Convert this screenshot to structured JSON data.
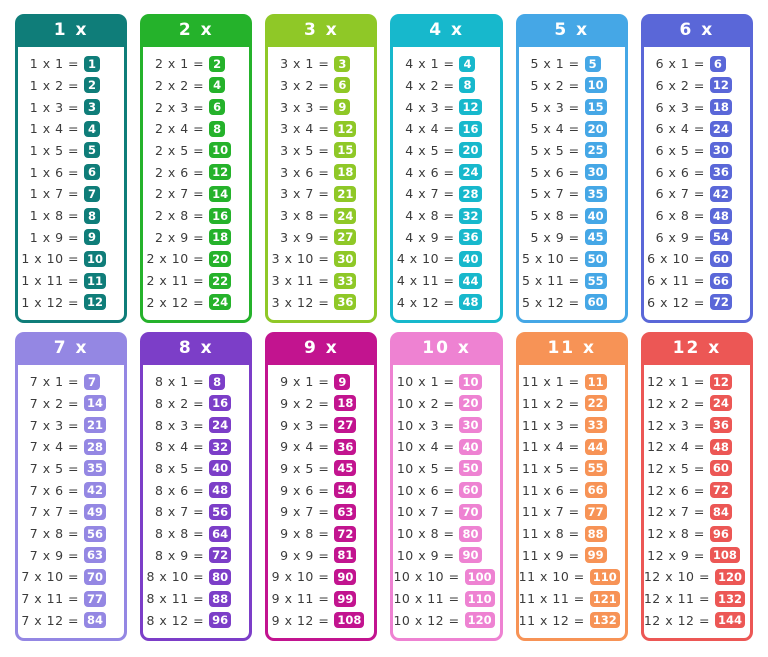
{
  "page": {
    "background": "#ffffff",
    "equation_text_color": "#3c3c3c",
    "chip_text_color": "#ffffff"
  },
  "tables": [
    {
      "title": "1 x",
      "color": "#0F7D79",
      "rows": [
        {
          "eq": "1 x 1 =",
          "val": "1"
        },
        {
          "eq": "1 x 2 =",
          "val": "2"
        },
        {
          "eq": "1 x 3 =",
          "val": "3"
        },
        {
          "eq": "1 x 4 =",
          "val": "4"
        },
        {
          "eq": "1 x 5 =",
          "val": "5"
        },
        {
          "eq": "1 x 6 =",
          "val": "6"
        },
        {
          "eq": "1 x 7 =",
          "val": "7"
        },
        {
          "eq": "1 x 8 =",
          "val": "8"
        },
        {
          "eq": "1 x 9 =",
          "val": "9"
        },
        {
          "eq": "1 x 10 =",
          "val": "10"
        },
        {
          "eq": "1 x 11 =",
          "val": "11"
        },
        {
          "eq": "1 x 12 =",
          "val": "12"
        }
      ]
    },
    {
      "title": "2 x",
      "color": "#25B22B",
      "rows": [
        {
          "eq": "2 x 1 =",
          "val": "2"
        },
        {
          "eq": "2 x 2 =",
          "val": "4"
        },
        {
          "eq": "2 x 3 =",
          "val": "6"
        },
        {
          "eq": "2 x 4 =",
          "val": "8"
        },
        {
          "eq": "2 x 5 =",
          "val": "10"
        },
        {
          "eq": "2 x 6 =",
          "val": "12"
        },
        {
          "eq": "2 x 7 =",
          "val": "14"
        },
        {
          "eq": "2 x 8 =",
          "val": "16"
        },
        {
          "eq": "2 x 9 =",
          "val": "18"
        },
        {
          "eq": "2 x 10 =",
          "val": "20"
        },
        {
          "eq": "2 x 11 =",
          "val": "22"
        },
        {
          "eq": "2 x 12 =",
          "val": "24"
        }
      ]
    },
    {
      "title": "3 x",
      "color": "#8FC827",
      "rows": [
        {
          "eq": "3 x 1 =",
          "val": "3"
        },
        {
          "eq": "3 x 2 =",
          "val": "6"
        },
        {
          "eq": "3 x 3 =",
          "val": "9"
        },
        {
          "eq": "3 x 4 =",
          "val": "12"
        },
        {
          "eq": "3 x 5 =",
          "val": "15"
        },
        {
          "eq": "3 x 6 =",
          "val": "18"
        },
        {
          "eq": "3 x 7 =",
          "val": "21"
        },
        {
          "eq": "3 x 8 =",
          "val": "24"
        },
        {
          "eq": "3 x 9 =",
          "val": "27"
        },
        {
          "eq": "3 x 10 =",
          "val": "30"
        },
        {
          "eq": "3 x 11 =",
          "val": "33"
        },
        {
          "eq": "3 x 12 =",
          "val": "36"
        }
      ]
    },
    {
      "title": "4 x",
      "color": "#17B8CC",
      "rows": [
        {
          "eq": "4 x 1 =",
          "val": "4"
        },
        {
          "eq": "4 x 2 =",
          "val": "8"
        },
        {
          "eq": "4 x 3 =",
          "val": "12"
        },
        {
          "eq": "4 x 4 =",
          "val": "16"
        },
        {
          "eq": "4 x 5 =",
          "val": "20"
        },
        {
          "eq": "4 x 6 =",
          "val": "24"
        },
        {
          "eq": "4 x 7 =",
          "val": "28"
        },
        {
          "eq": "4 x 8 =",
          "val": "32"
        },
        {
          "eq": "4 x 9 =",
          "val": "36"
        },
        {
          "eq": "4 x 10 =",
          "val": "40"
        },
        {
          "eq": "4 x 11 =",
          "val": "44"
        },
        {
          "eq": "4 x 12 =",
          "val": "48"
        }
      ]
    },
    {
      "title": "5 x",
      "color": "#45A7E6",
      "rows": [
        {
          "eq": "5 x 1 =",
          "val": "5"
        },
        {
          "eq": "5 x 2 =",
          "val": "10"
        },
        {
          "eq": "5 x 3 =",
          "val": "15"
        },
        {
          "eq": "5 x 4 =",
          "val": "20"
        },
        {
          "eq": "5 x 5 =",
          "val": "25"
        },
        {
          "eq": "5 x 6 =",
          "val": "30"
        },
        {
          "eq": "5 x 7 =",
          "val": "35"
        },
        {
          "eq": "5 x 8 =",
          "val": "40"
        },
        {
          "eq": "5 x 9 =",
          "val": "45"
        },
        {
          "eq": "5 x 10 =",
          "val": "50"
        },
        {
          "eq": "5 x 11 =",
          "val": "55"
        },
        {
          "eq": "5 x 12 =",
          "val": "60"
        }
      ]
    },
    {
      "title": "6 x",
      "color": "#5A67D8",
      "rows": [
        {
          "eq": "6 x 1 =",
          "val": "6"
        },
        {
          "eq": "6 x 2 =",
          "val": "12"
        },
        {
          "eq": "6 x 3 =",
          "val": "18"
        },
        {
          "eq": "6 x 4 =",
          "val": "24"
        },
        {
          "eq": "6 x 5 =",
          "val": "30"
        },
        {
          "eq": "6 x 6 =",
          "val": "36"
        },
        {
          "eq": "6 x 7 =",
          "val": "42"
        },
        {
          "eq": "6 x 8 =",
          "val": "48"
        },
        {
          "eq": "6 x 9 =",
          "val": "54"
        },
        {
          "eq": "6 x 10 =",
          "val": "60"
        },
        {
          "eq": "6 x 11 =",
          "val": "66"
        },
        {
          "eq": "6 x 12 =",
          "val": "72"
        }
      ]
    },
    {
      "title": "7 x",
      "color": "#9487E3",
      "rows": [
        {
          "eq": "7 x 1 =",
          "val": "7"
        },
        {
          "eq": "7 x 2 =",
          "val": "14"
        },
        {
          "eq": "7 x 3 =",
          "val": "21"
        },
        {
          "eq": "7 x 4 =",
          "val": "28"
        },
        {
          "eq": "7 x 5 =",
          "val": "35"
        },
        {
          "eq": "7 x 6 =",
          "val": "42"
        },
        {
          "eq": "7 x 7 =",
          "val": "49"
        },
        {
          "eq": "7 x 8 =",
          "val": "56"
        },
        {
          "eq": "7 x 9 =",
          "val": "63"
        },
        {
          "eq": "7 x 10 =",
          "val": "70"
        },
        {
          "eq": "7 x 11 =",
          "val": "77"
        },
        {
          "eq": "7 x 12 =",
          "val": "84"
        }
      ]
    },
    {
      "title": "8 x",
      "color": "#7C3EC8",
      "rows": [
        {
          "eq": "8 x 1 =",
          "val": "8"
        },
        {
          "eq": "8 x 2 =",
          "val": "16"
        },
        {
          "eq": "8 x 3 =",
          "val": "24"
        },
        {
          "eq": "8 x 4 =",
          "val": "32"
        },
        {
          "eq": "8 x 5 =",
          "val": "40"
        },
        {
          "eq": "8 x 6 =",
          "val": "48"
        },
        {
          "eq": "8 x 7 =",
          "val": "56"
        },
        {
          "eq": "8 x 8 =",
          "val": "64"
        },
        {
          "eq": "8 x 9 =",
          "val": "72"
        },
        {
          "eq": "8 x 10 =",
          "val": "80"
        },
        {
          "eq": "8 x 11 =",
          "val": "88"
        },
        {
          "eq": "8 x 12 =",
          "val": "96"
        }
      ]
    },
    {
      "title": "9 x",
      "color": "#C2148F",
      "rows": [
        {
          "eq": "9 x 1 =",
          "val": "9"
        },
        {
          "eq": "9 x 2 =",
          "val": "18"
        },
        {
          "eq": "9 x 3 =",
          "val": "27"
        },
        {
          "eq": "9 x 4 =",
          "val": "36"
        },
        {
          "eq": "9 x 5 =",
          "val": "45"
        },
        {
          "eq": "9 x 6 =",
          "val": "54"
        },
        {
          "eq": "9 x 7 =",
          "val": "63"
        },
        {
          "eq": "9 x 8 =",
          "val": "72"
        },
        {
          "eq": "9 x 9 =",
          "val": "81"
        },
        {
          "eq": "9 x 10 =",
          "val": "90"
        },
        {
          "eq": "9 x 11 =",
          "val": "99"
        },
        {
          "eq": "9 x 12 =",
          "val": "108"
        }
      ]
    },
    {
      "title": "10 x",
      "color": "#EE82D2",
      "rows": [
        {
          "eq": "10 x 1 =",
          "val": "10"
        },
        {
          "eq": "10 x 2 =",
          "val": "20"
        },
        {
          "eq": "10 x 3 =",
          "val": "30"
        },
        {
          "eq": "10 x 4 =",
          "val": "40"
        },
        {
          "eq": "10 x 5 =",
          "val": "50"
        },
        {
          "eq": "10 x 6 =",
          "val": "60"
        },
        {
          "eq": "10 x 7 =",
          "val": "70"
        },
        {
          "eq": "10 x 8 =",
          "val": "80"
        },
        {
          "eq": "10 x 9 =",
          "val": "90"
        },
        {
          "eq": "10 x 10 =",
          "val": "100"
        },
        {
          "eq": "10 x 11 =",
          "val": "110"
        },
        {
          "eq": "10 x 12 =",
          "val": "120"
        }
      ]
    },
    {
      "title": "11 x",
      "color": "#F79356",
      "rows": [
        {
          "eq": "11 x 1 =",
          "val": "11"
        },
        {
          "eq": "11 x 2 =",
          "val": "22"
        },
        {
          "eq": "11 x 3 =",
          "val": "33"
        },
        {
          "eq": "11 x 4 =",
          "val": "44"
        },
        {
          "eq": "11 x 5 =",
          "val": "55"
        },
        {
          "eq": "11 x 6 =",
          "val": "66"
        },
        {
          "eq": "11 x 7 =",
          "val": "77"
        },
        {
          "eq": "11 x 8 =",
          "val": "88"
        },
        {
          "eq": "11 x 9 =",
          "val": "99"
        },
        {
          "eq": "11 x 10 =",
          "val": "110"
        },
        {
          "eq": "11 x 11 =",
          "val": "121"
        },
        {
          "eq": "11 x 12 =",
          "val": "132"
        }
      ]
    },
    {
      "title": "12 x",
      "color": "#EC5755",
      "rows": [
        {
          "eq": "12 x 1 =",
          "val": "12"
        },
        {
          "eq": "12 x 2 =",
          "val": "24"
        },
        {
          "eq": "12 x 3 =",
          "val": "36"
        },
        {
          "eq": "12 x 4 =",
          "val": "48"
        },
        {
          "eq": "12 x 5 =",
          "val": "60"
        },
        {
          "eq": "12 x 6 =",
          "val": "72"
        },
        {
          "eq": "12 x 7 =",
          "val": "84"
        },
        {
          "eq": "12 x 8 =",
          "val": "96"
        },
        {
          "eq": "12 x 9 =",
          "val": "108"
        },
        {
          "eq": "12 x 10 =",
          "val": "120"
        },
        {
          "eq": "12 x 11 =",
          "val": "132"
        },
        {
          "eq": "12 x 12 =",
          "val": "144"
        }
      ]
    }
  ]
}
